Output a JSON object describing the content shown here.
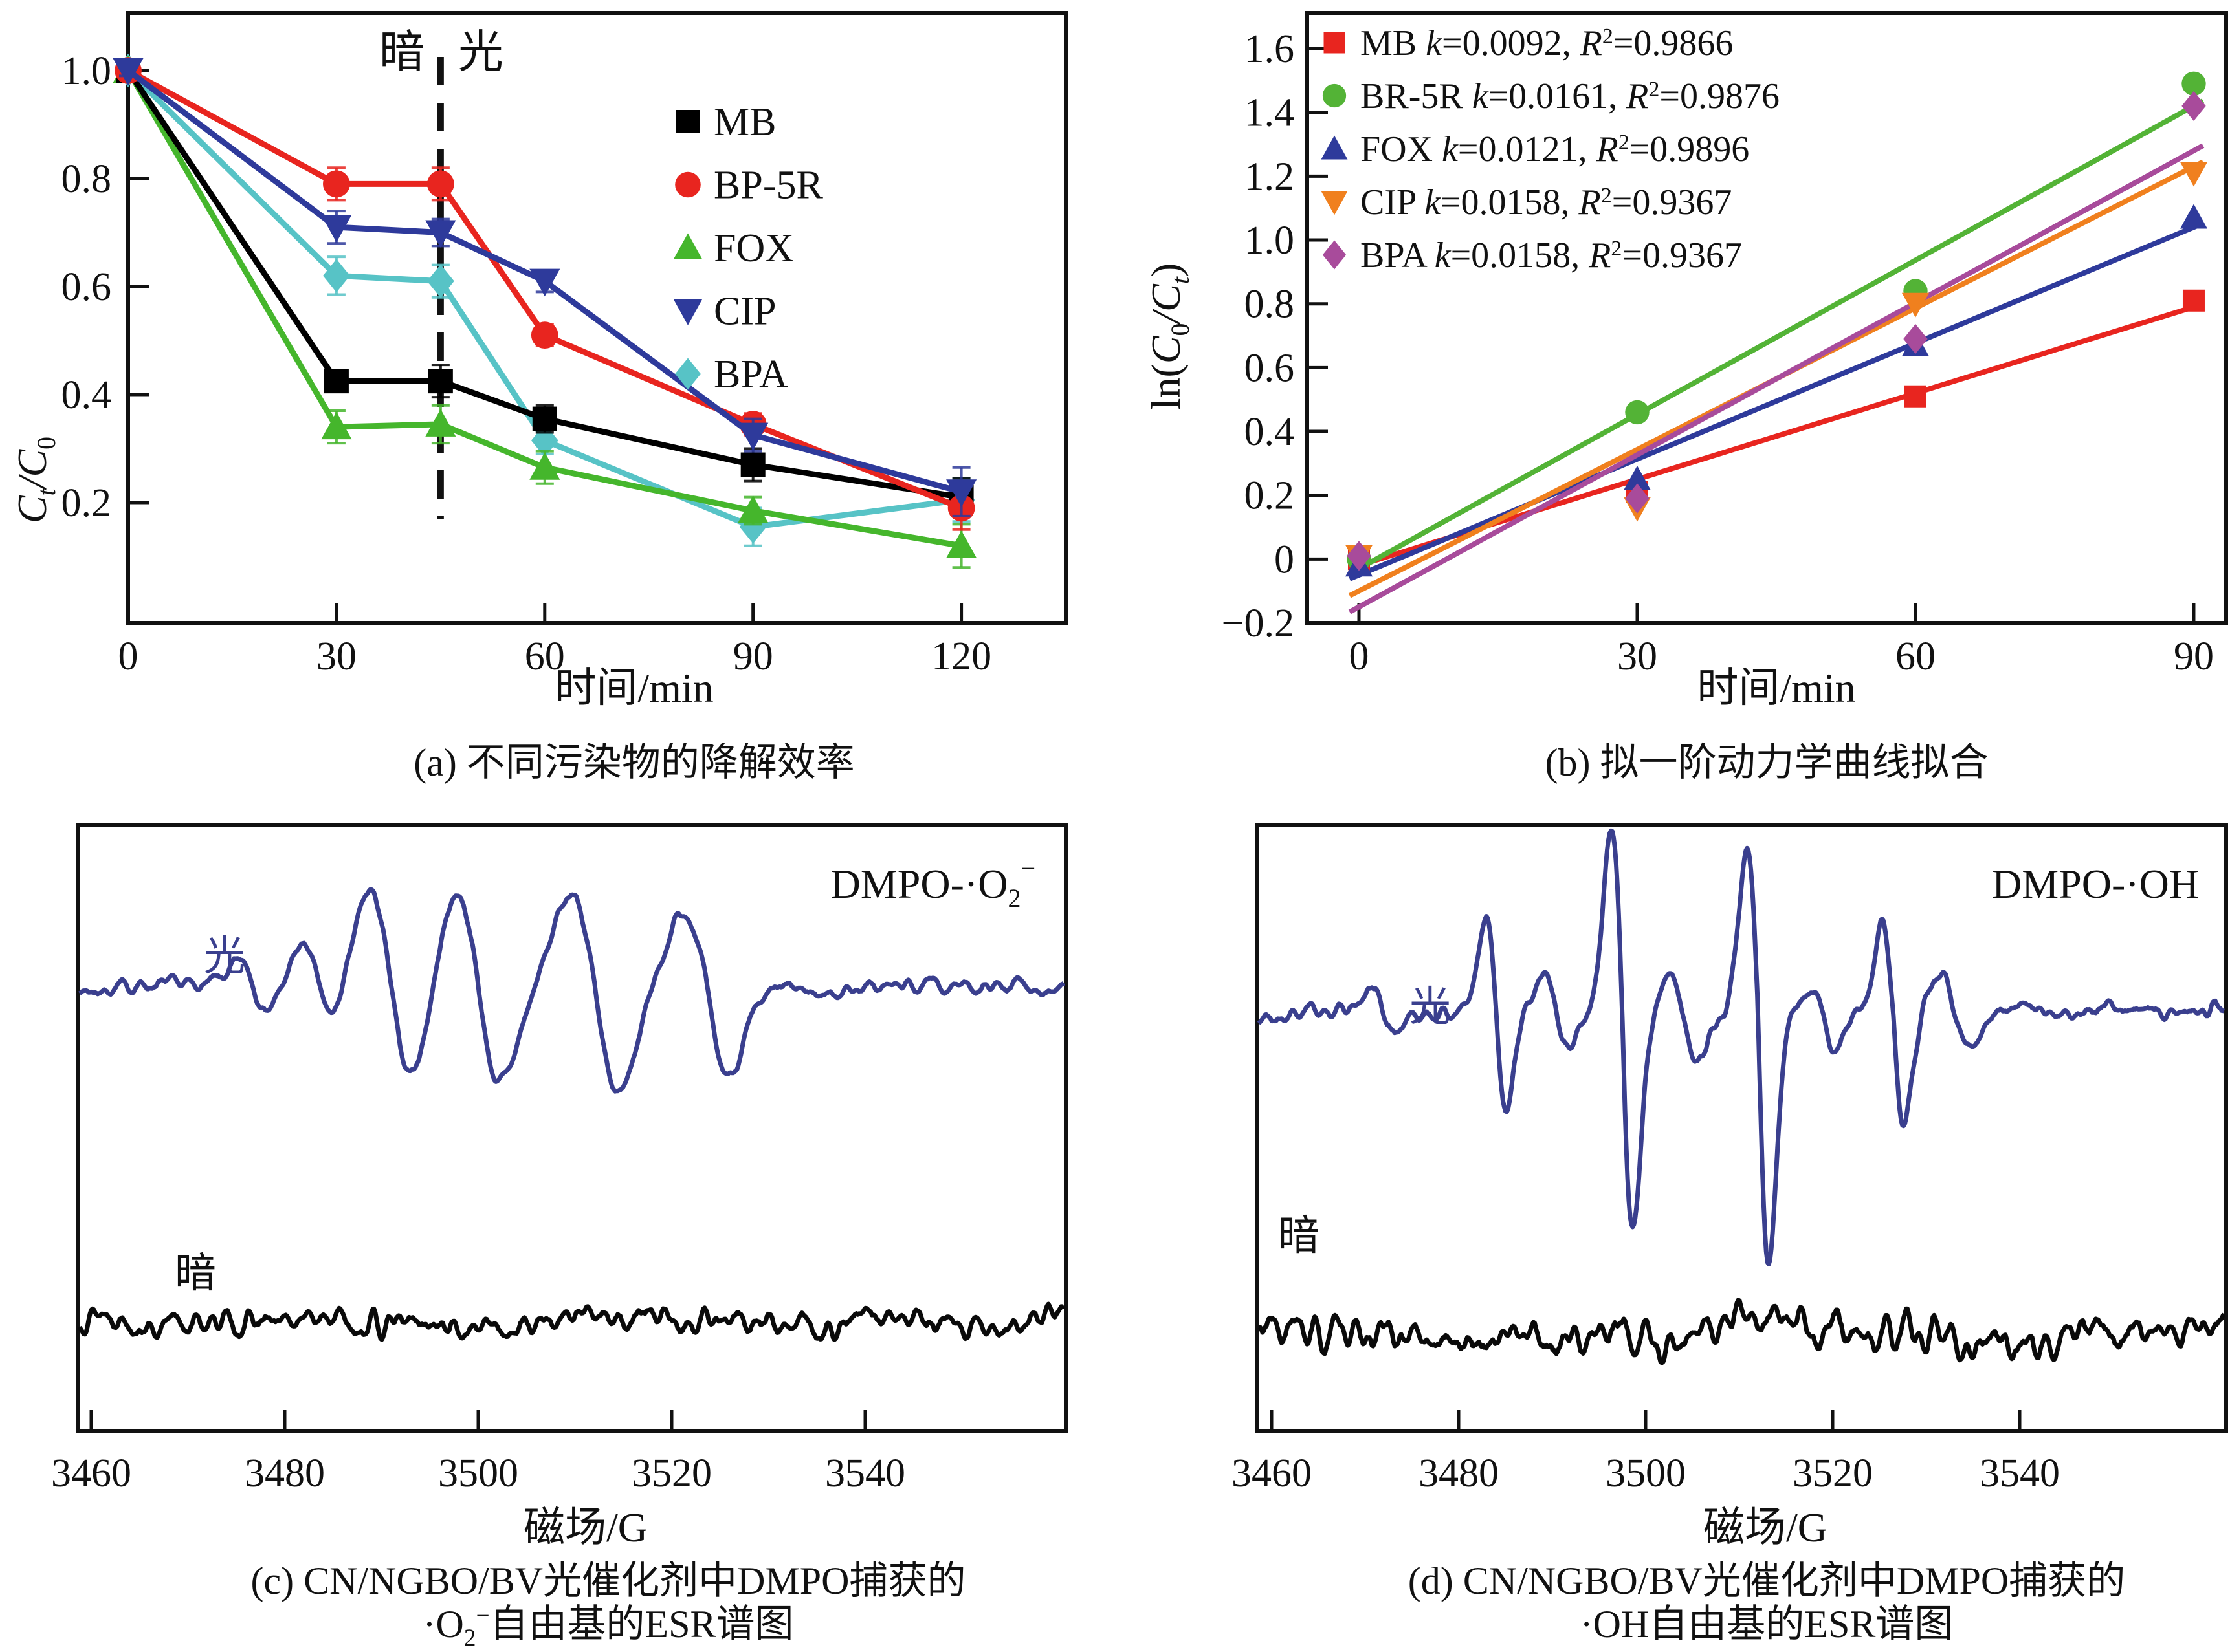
{
  "panels": {
    "a": {
      "caption": "(a) 不同污染物的降解效率",
      "xlabel": "时间/min",
      "ylabel": {
        "c1": "C",
        "s1": "t",
        "c2": "/C",
        "s2": "0"
      },
      "dark_label": "暗",
      "light_label": "光"
    },
    "b": {
      "caption": "(b) 拟一阶动力学曲线拟合",
      "xlabel": "时间/min",
      "ylabel": {
        "pre": "ln(",
        "c1": "C",
        "s1": "0",
        "c2": "/C",
        "s2": "t",
        "post": ")"
      }
    },
    "c": {
      "caption_line1": "(c) CN/NGBO/BV光催化剂中DMPO捕获的",
      "caption_line2": {
        "pre": "·O",
        "sub": "2",
        "sup": "−",
        "post": "自由基的ESR谱图"
      },
      "xlabel": "磁场/G",
      "light_label": "光",
      "dark_label": "暗"
    },
    "d": {
      "caption_line1": "(d) CN/NGBO/BV光催化剂中DMPO捕获的",
      "caption_line2": {
        "pre": "·OH",
        "post": "自由基的ESR谱图"
      },
      "xlabel": "磁场/G",
      "light_label": "光",
      "dark_label": "暗"
    }
  },
  "chart_data": {
    "a": {
      "type": "line",
      "xlabel": "时间/min",
      "ylabel": "Ct/C0",
      "x_ticks": [
        0,
        30,
        60,
        90,
        120
      ],
      "y_ticks": [
        0.2,
        0.4,
        0.6,
        0.8,
        1.0
      ],
      "xlim": [
        0,
        135
      ],
      "ylim": [
        -0.02,
        1.11
      ],
      "dashed_x": 45,
      "series": [
        {
          "name": "MB",
          "color": "#000000",
          "marker": "square",
          "x": [
            0,
            30,
            45,
            60,
            90,
            120
          ],
          "y": [
            1.0,
            0.425,
            0.425,
            0.355,
            0.27,
            0.21
          ],
          "err": [
            0.01,
            0.02,
            0.03,
            0.025,
            0.03,
            0.035
          ]
        },
        {
          "name": "BP-5R",
          "color": "#e8251f",
          "marker": "circle",
          "x": [
            0,
            30,
            45,
            60,
            90,
            120
          ],
          "y": [
            1.0,
            0.79,
            0.79,
            0.51,
            0.345,
            0.19
          ],
          "err": [
            0.01,
            0.03,
            0.03,
            0.02,
            0.02,
            0.04
          ]
        },
        {
          "name": "FOX",
          "color": "#45b62c",
          "marker": "triangle-up",
          "x": [
            0,
            30,
            45,
            60,
            90,
            120
          ],
          "y": [
            1.0,
            0.34,
            0.345,
            0.265,
            0.185,
            0.12
          ],
          "err": [
            0.01,
            0.03,
            0.035,
            0.03,
            0.025,
            0.04
          ]
        },
        {
          "name": "CIP",
          "color": "#2e3a9b",
          "marker": "triangle-down",
          "x": [
            0,
            30,
            45,
            60,
            90,
            120
          ],
          "y": [
            1.0,
            0.71,
            0.7,
            0.61,
            0.325,
            0.22
          ],
          "err": [
            0.01,
            0.03,
            0.025,
            0.02,
            0.03,
            0.045
          ]
        },
        {
          "name": "BPA",
          "color": "#57c3c6",
          "marker": "diamond",
          "x": [
            0,
            30,
            45,
            60,
            90,
            120
          ],
          "y": [
            1.0,
            0.62,
            0.61,
            0.315,
            0.155,
            0.205
          ],
          "err": [
            0.01,
            0.035,
            0.03,
            0.025,
            0.035,
            0.04
          ]
        }
      ],
      "legend_order": [
        "MB",
        "BP-5R",
        "FOX",
        "CIP",
        "BPA"
      ]
    },
    "b": {
      "type": "scatter",
      "xlabel": "时间/min",
      "ylabel": "ln(C0/Ct)",
      "x_ticks": [
        0,
        30,
        60,
        90
      ],
      "y_ticks": [
        -0.2,
        0,
        0.2,
        0.4,
        0.6,
        0.8,
        1.0,
        1.2,
        1.4,
        1.6
      ],
      "xlim": [
        -2,
        93
      ],
      "ylim": [
        -0.2,
        1.71
      ],
      "series": [
        {
          "name": "MB",
          "k": "0.0092",
          "r2": "0.9866",
          "color": "#e8251f",
          "marker": "square",
          "x": [
            0,
            30,
            60,
            90
          ],
          "y": [
            0.0,
            0.21,
            0.51,
            0.81
          ],
          "fit": [
            -0.02,
            0.79
          ]
        },
        {
          "name": "BR-5R",
          "k": "0.0161",
          "r2": "0.9876",
          "color": "#53b336",
          "marker": "circle",
          "x": [
            0,
            30,
            60,
            90
          ],
          "y": [
            0.0,
            0.46,
            0.84,
            1.49
          ],
          "fit": [
            -0.03,
            1.42
          ]
        },
        {
          "name": "FOX",
          "k": "0.0121",
          "r2": "0.9896",
          "color": "#2e3a9b",
          "marker": "triangle-up",
          "x": [
            0,
            30,
            60,
            90
          ],
          "y": [
            -0.02,
            0.25,
            0.67,
            1.07
          ],
          "fit": [
            -0.05,
            1.04
          ]
        },
        {
          "name": "CIP",
          "k": "0.0158",
          "r2": "0.9367",
          "color": "#f0801e",
          "marker": "triangle-down",
          "x": [
            0,
            30,
            60,
            90
          ],
          "y": [
            0.01,
            0.16,
            0.8,
            1.21
          ],
          "fit": [
            -0.1,
            1.23
          ]
        },
        {
          "name": "BPA",
          "k": "0.0158",
          "r2": "0.9367",
          "color": "#a84b9b",
          "marker": "diamond",
          "x": [
            0,
            30,
            60,
            90
          ],
          "y": [
            0.01,
            0.19,
            0.69,
            1.42
          ],
          "fit": [
            -0.15,
            1.28
          ]
        }
      ]
    },
    "c": {
      "type": "esr",
      "xlabel": "磁场/G",
      "x_ticks": [
        3460,
        3480,
        3500,
        3520,
        3540
      ],
      "corner": {
        "pre": "DMPO-·O",
        "sub": "2",
        "sup": "−"
      },
      "traces": [
        {
          "id": "light",
          "color": "#3a3f8e",
          "baseline": 1527,
          "noise": 16,
          "slow_noise": 10,
          "seed": 7,
          "peaks": [
            [
              3477,
              2.0,
              38,
              32
            ],
            [
              3483.5,
              2.3,
              60,
              50
            ],
            [
              3491,
              3.1,
              150,
              132
            ],
            [
              3500,
              3.2,
              148,
              152
            ],
            [
              3512,
              3.4,
              142,
              165
            ],
            [
              3523.5,
              3.2,
              118,
              142
            ]
          ]
        },
        {
          "id": "dark",
          "color": "#0a0a0a",
          "baseline": 2042,
          "noise": 33,
          "slow_noise": 15,
          "seed": 13,
          "peaks": []
        }
      ]
    },
    "d": {
      "type": "esr",
      "xlabel": "磁场/G",
      "x_ticks": [
        3460,
        3480,
        3500,
        3520,
        3540
      ],
      "corner": {
        "pre": "DMPO-·OH"
      },
      "traces": [
        {
          "id": "light",
          "color": "#3a3f8e",
          "baseline": 1565,
          "noise": 20,
          "slow_noise": 12,
          "seed": 21,
          "peaks": [
            [
              3472,
              2.0,
              40,
              35
            ],
            [
              3484,
              1.5,
              135,
              155
            ],
            [
              3490.5,
              2.0,
              52,
              46
            ],
            [
              3497.5,
              1.6,
              275,
              335
            ],
            [
              3504,
              2.0,
              56,
              62
            ],
            [
              3512,
              1.6,
              250,
              385
            ],
            [
              3519,
              2.0,
              52,
              56
            ],
            [
              3526.5,
              1.6,
              128,
              170
            ],
            [
              3533,
              2.2,
              60,
              56
            ]
          ]
        },
        {
          "id": "dark",
          "color": "#0a0a0a",
          "baseline": 2065,
          "noise": 43,
          "slow_noise": 17,
          "seed": 33,
          "peaks": []
        }
      ]
    }
  }
}
